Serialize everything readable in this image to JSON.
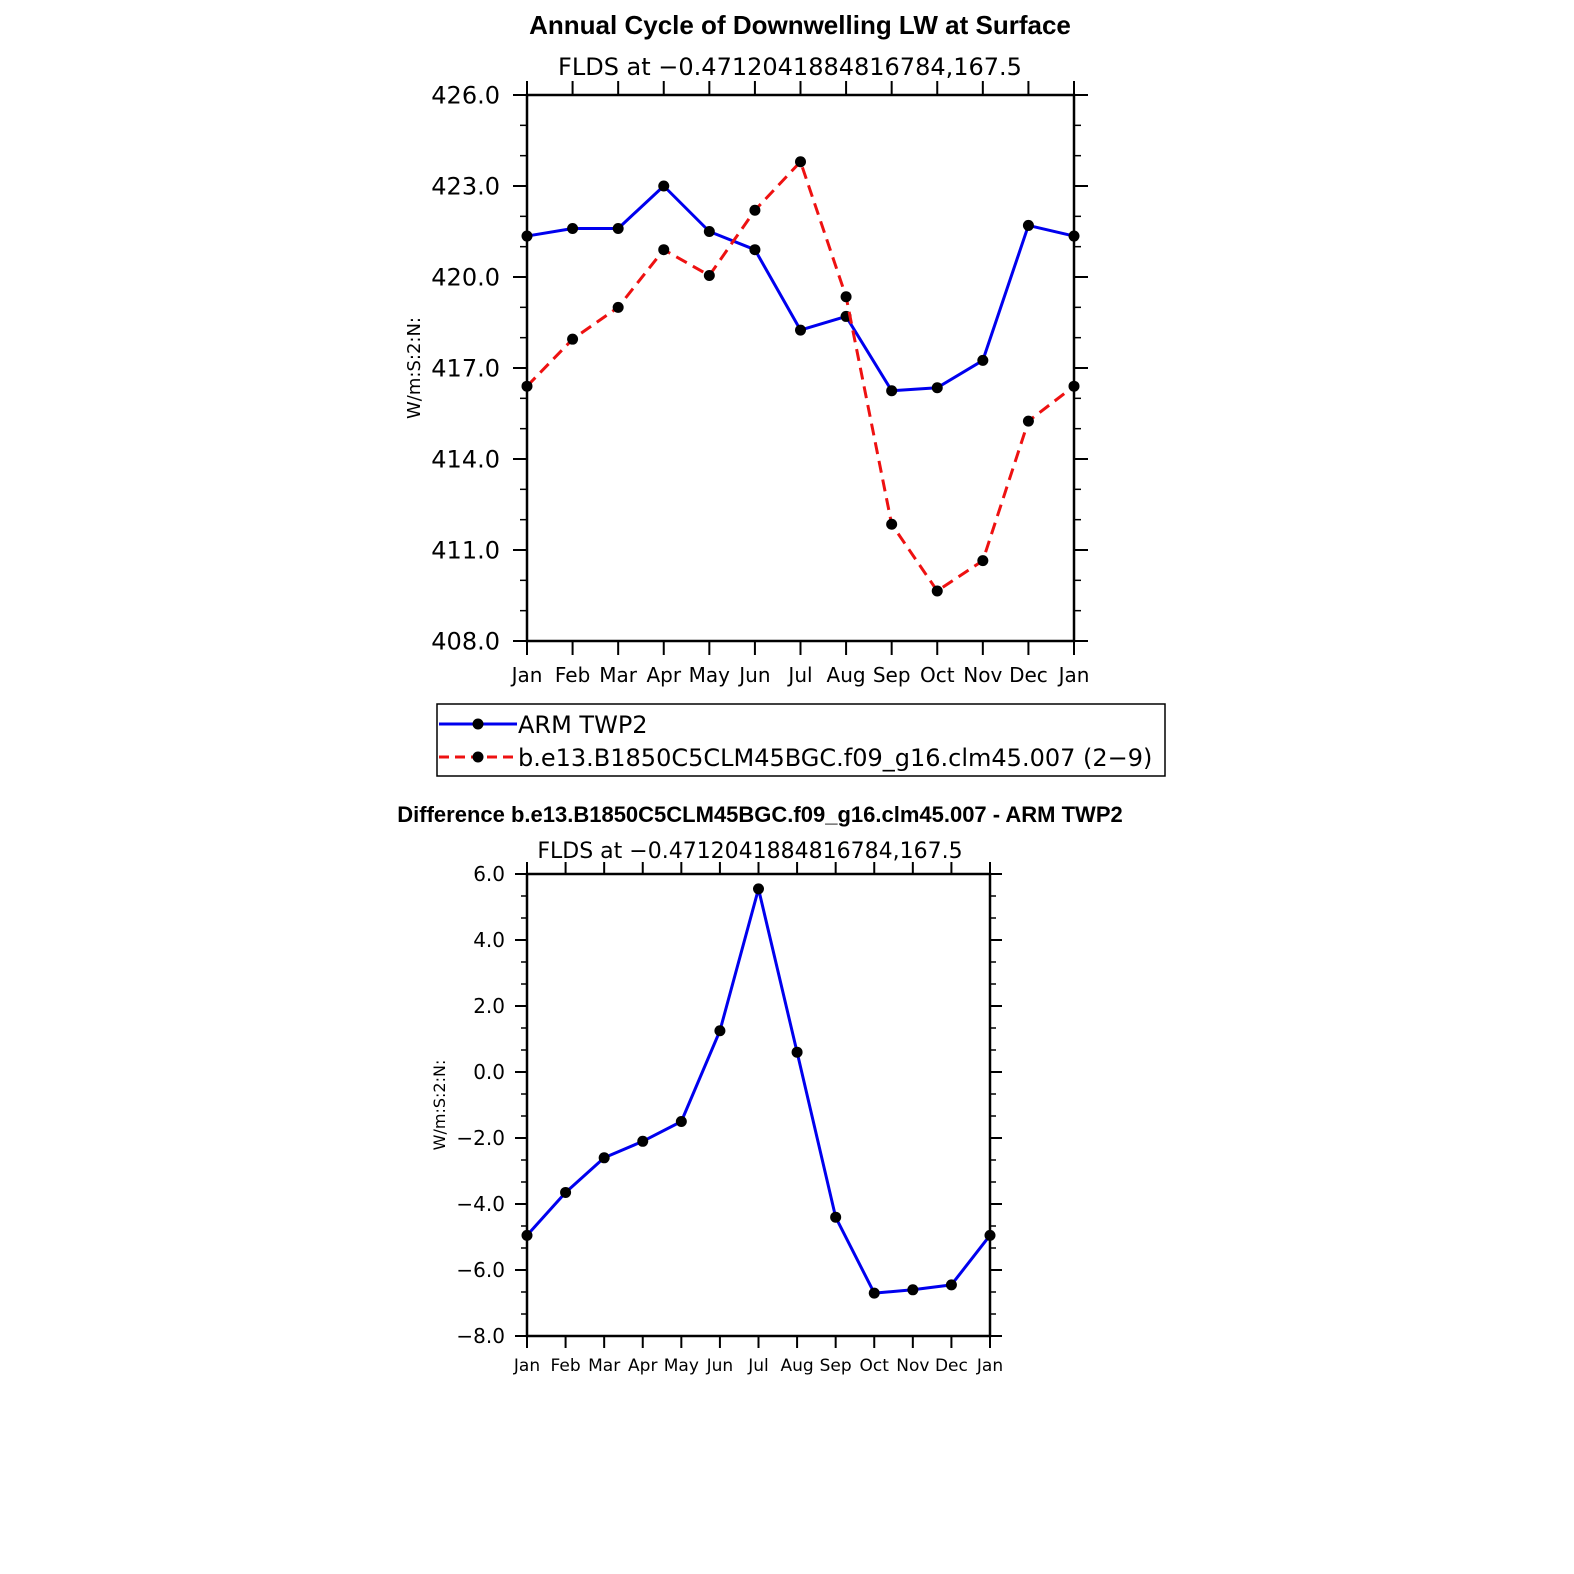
{
  "colors": {
    "series_a": "#0000ee",
    "series_b": "#ee1111",
    "marker": "#000000",
    "axis": "#000000"
  },
  "chart_data": [
    {
      "type": "line",
      "title": "Annual Cycle of Downwelling LW at Surface",
      "subtitle": "FLDS at −0.4712041884816784,167.5",
      "xlabel": "",
      "ylabel": "W/m:S:2:N:",
      "ylim": [
        408,
        426
      ],
      "yticks": [
        408,
        411,
        414,
        417,
        420,
        423,
        426
      ],
      "ytick_labels": [
        "408.0",
        "411.0",
        "414.0",
        "417.0",
        "420.0",
        "423.0",
        "426.0"
      ],
      "categories": [
        "Jan",
        "Feb",
        "Mar",
        "Apr",
        "May",
        "Jun",
        "Jul",
        "Aug",
        "Sep",
        "Oct",
        "Nov",
        "Dec",
        "Jan"
      ],
      "grid": false,
      "legend": "below",
      "series": [
        {
          "name": "ARM TWP2",
          "style": "solid",
          "values": [
            421.35,
            421.6,
            421.6,
            423.0,
            421.5,
            420.9,
            418.25,
            418.7,
            416.25,
            416.35,
            417.25,
            421.7,
            421.35
          ]
        },
        {
          "name": "b.e13.B1850C5CLM45BGC.f09_g16.clm45.007 (2−9)",
          "style": "dashed",
          "values": [
            416.4,
            417.95,
            419.0,
            420.9,
            420.05,
            422.2,
            423.8,
            419.35,
            411.85,
            409.65,
            410.65,
            415.25,
            416.4
          ]
        }
      ]
    },
    {
      "type": "line",
      "title": "Difference b.e13.B1850C5CLM45BGC.f09_g16.clm45.007 - ARM TWP2",
      "subtitle": "FLDS at −0.4712041884816784,167.5",
      "xlabel": "",
      "ylabel": "W/m:S:2:N:",
      "ylim": [
        -8,
        6
      ],
      "yticks": [
        -8,
        -6,
        -4,
        -2,
        0,
        2,
        4,
        6
      ],
      "ytick_labels": [
        "−8.0",
        "−6.0",
        "−4.0",
        "−2.0",
        "0.0",
        "2.0",
        "4.0",
        "6.0"
      ],
      "categories": [
        "Jan",
        "Feb",
        "Mar",
        "Apr",
        "May",
        "Jun",
        "Jul",
        "Aug",
        "Sep",
        "Oct",
        "Nov",
        "Dec",
        "Jan"
      ],
      "grid": false,
      "series": [
        {
          "style": "solid",
          "values": [
            -4.95,
            -3.65,
            -2.6,
            -2.1,
            -1.5,
            1.25,
            5.55,
            0.6,
            -4.4,
            -6.7,
            -6.6,
            -6.45,
            -4.95
          ]
        }
      ]
    }
  ]
}
